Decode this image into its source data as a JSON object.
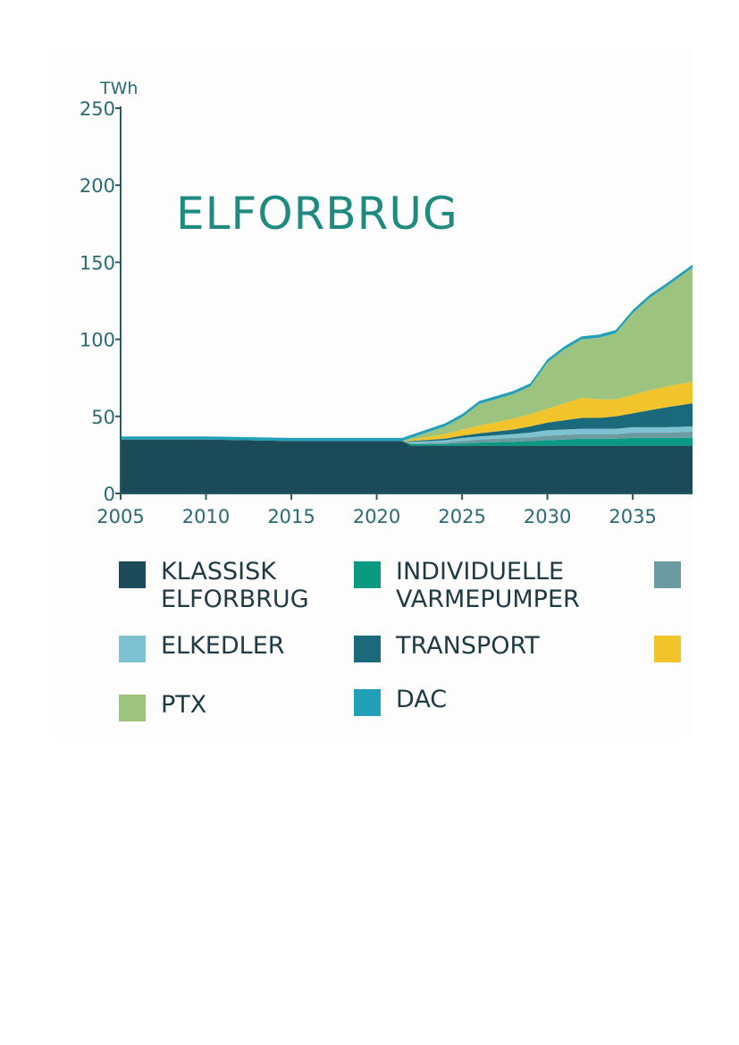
{
  "chart_data": {
    "type": "area",
    "stacked": true,
    "title": "ELFORBRUG",
    "ylabel": "TWh",
    "xlabel": "",
    "xlim": [
      2005,
      2038.5
    ],
    "ylim": [
      0,
      250
    ],
    "x_ticks": [
      "2005",
      "2010",
      "2015",
      "2020",
      "2025",
      "2030",
      "2035"
    ],
    "y_ticks": [
      "0",
      "50",
      "100",
      "150",
      "200",
      "250"
    ],
    "grid": false,
    "legend_position": "bottom",
    "x": [
      2005,
      2010,
      2015,
      2020,
      2021.5,
      2022,
      2024,
      2025,
      2026,
      2028,
      2029,
      2030,
      2031,
      2032,
      2033,
      2034,
      2035,
      2036,
      2037,
      2038.5
    ],
    "series": [
      {
        "name": "KLASSISK\nELFORBRUG",
        "color": "#1b4a58",
        "values": [
          35,
          35,
          34,
          34,
          34,
          31,
          31,
          31,
          31,
          31,
          31,
          31,
          31,
          31,
          31,
          31,
          31,
          31,
          31,
          31
        ]
      },
      {
        "name": "INDIVIDUELLE\nVARMEPUMPER",
        "color": "#0a9a84",
        "values": [
          0,
          0,
          0,
          0,
          0,
          1,
          1,
          1.5,
          2,
          2.5,
          3,
          3.5,
          4,
          4.5,
          4.5,
          4.5,
          5,
          5,
          5,
          5
        ]
      },
      {
        "name": "",
        "color": "#6b9aa0",
        "values": [
          0,
          0,
          0,
          0,
          0,
          0.5,
          1,
          1.5,
          2,
          2.5,
          2.5,
          3,
          3,
          3,
          3,
          3,
          3.5,
          3.5,
          3.5,
          4
        ]
      },
      {
        "name": "ELKEDLER",
        "color": "#7cc2d0",
        "values": [
          0,
          0,
          0,
          0,
          0,
          1,
          1.5,
          2,
          2,
          2.5,
          3,
          3.5,
          3.5,
          3.5,
          3.5,
          3.5,
          3.5,
          3.5,
          3.5,
          3.5
        ]
      },
      {
        "name": "TRANSPORT",
        "color": "#1a6a7c",
        "values": [
          0,
          0,
          0,
          0,
          0,
          0.5,
          1,
          1.5,
          2,
          3,
          4,
          5,
          6,
          7,
          7,
          8,
          9,
          11,
          13,
          15
        ]
      },
      {
        "name": "",
        "color": "#f2c42c",
        "values": [
          0,
          0,
          0,
          0,
          0,
          1,
          3,
          4,
          5,
          7,
          8,
          9,
          11,
          13,
          12,
          11,
          12,
          13,
          13.5,
          14
        ]
      },
      {
        "name": "PTX",
        "color": "#9cc47e",
        "values": [
          0,
          0,
          0,
          0,
          0,
          1,
          5,
          8,
          14,
          16,
          18,
          30,
          35,
          38,
          40,
          43,
          53,
          60,
          65,
          74
        ]
      },
      {
        "name": "DAC",
        "color": "#22a0b8",
        "values": [
          2,
          2,
          2,
          2,
          2,
          2,
          2,
          2,
          2,
          2,
          2,
          2,
          2,
          2,
          2,
          2,
          2,
          2,
          2,
          2
        ]
      }
    ]
  }
}
